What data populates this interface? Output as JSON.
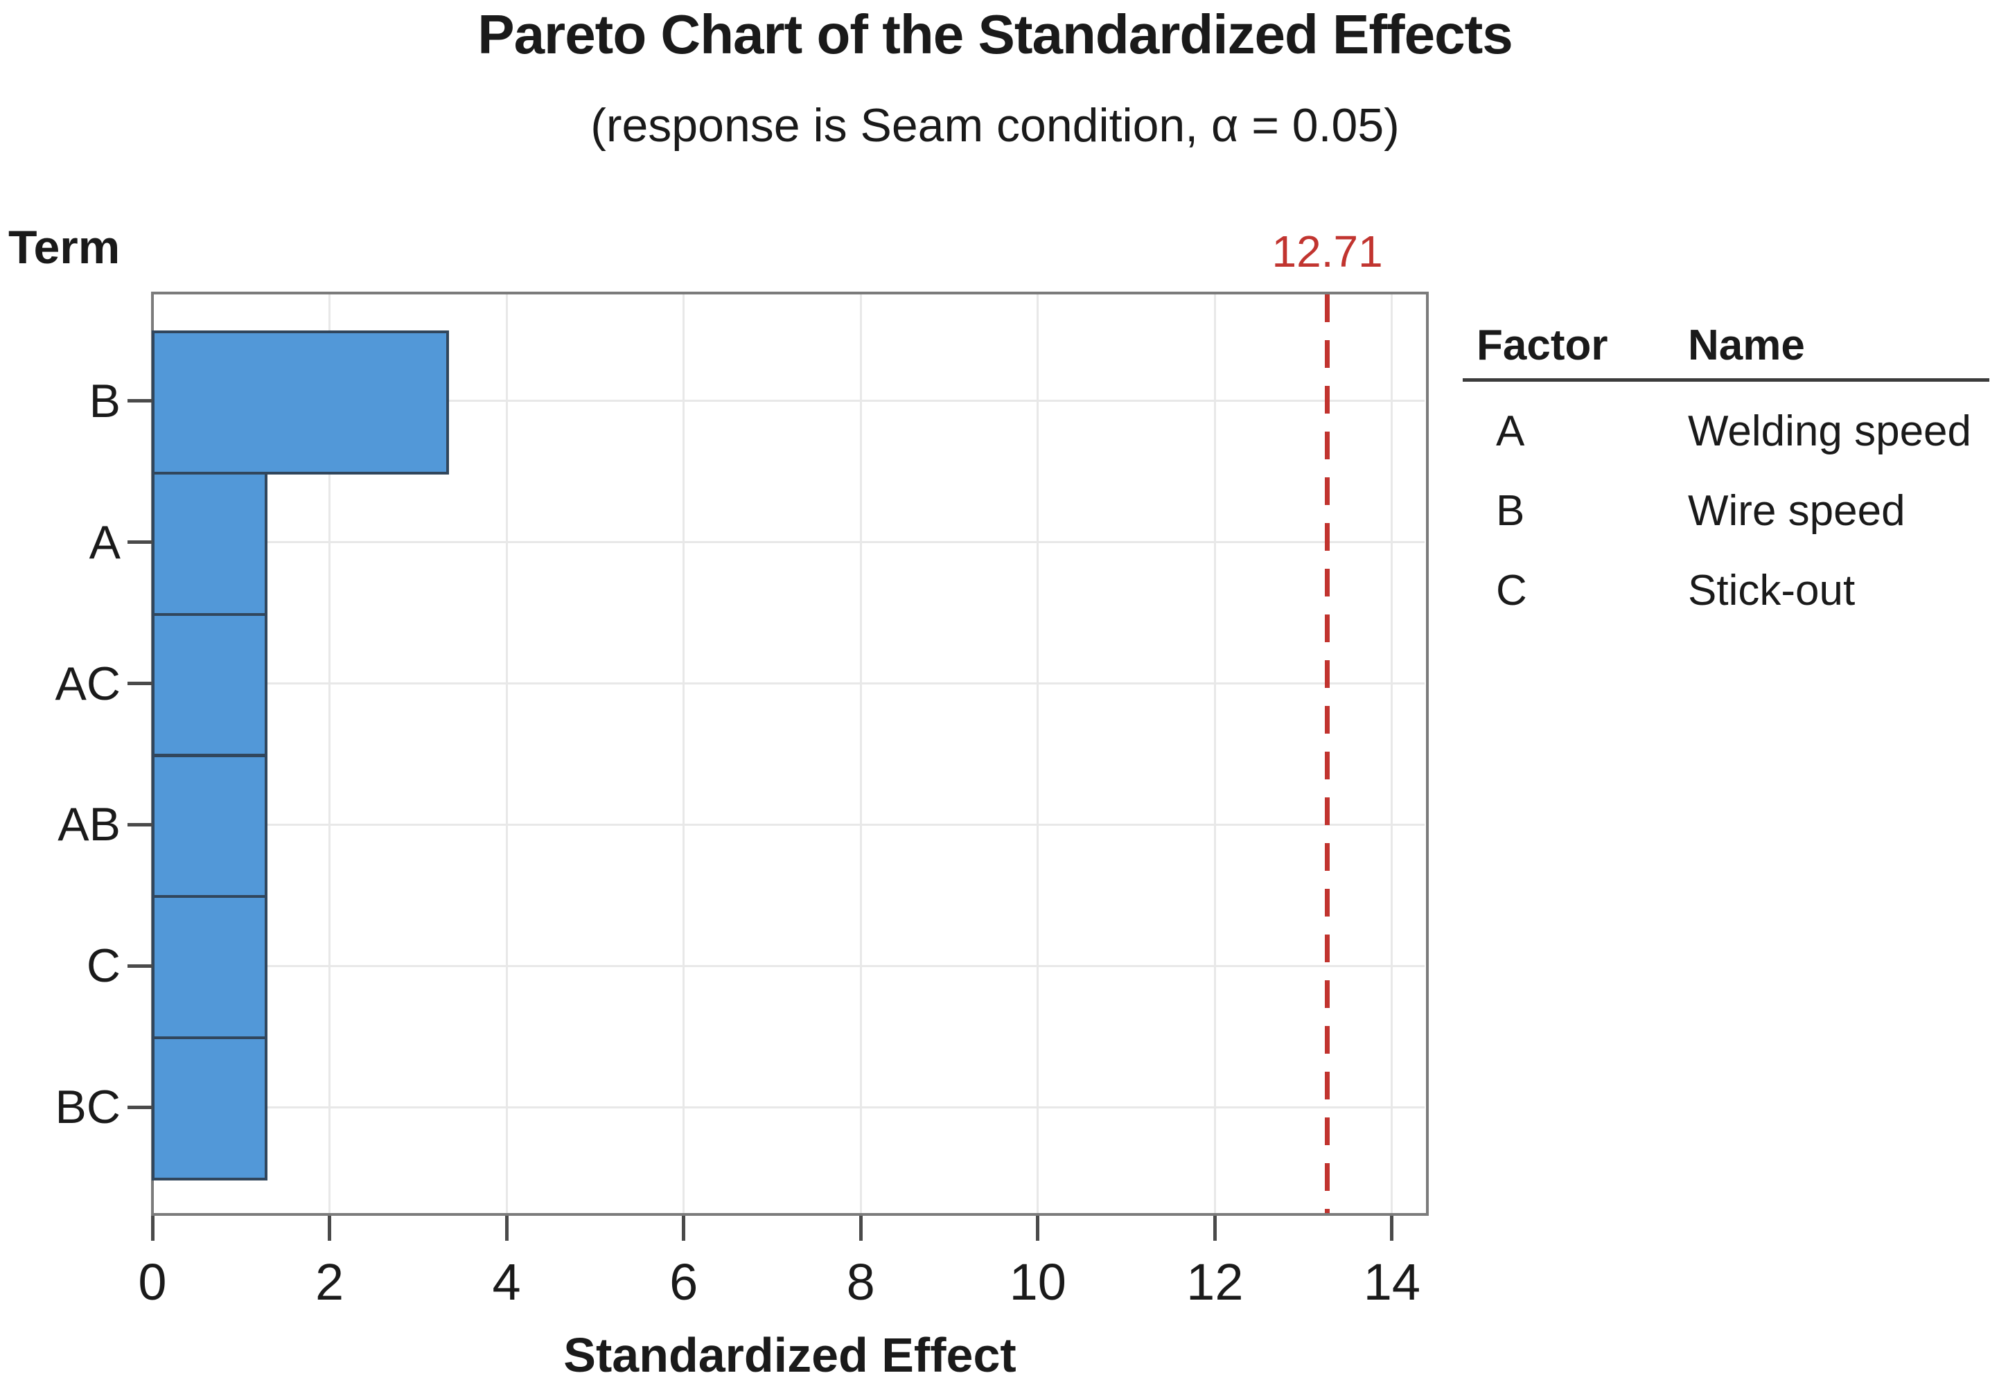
{
  "chart_data": {
    "type": "bar",
    "orientation": "horizontal",
    "title": "Pareto Chart of the Standardized Effects",
    "subtitle": "(response is Seam condition, α = 0.05)",
    "xlabel": "Standardized Effect",
    "ylabel": "Term",
    "categories": [
      "B",
      "A",
      "AC",
      "AB",
      "C",
      "BC"
    ],
    "values": [
      3.35,
      1.3,
      1.3,
      1.3,
      1.3,
      1.3
    ],
    "x_ticks": [
      0,
      2,
      4,
      6,
      8,
      10,
      12,
      14
    ],
    "xlim": [
      0,
      14.4
    ],
    "grid": "light gray gridlines at x ticks and bar centers",
    "legend_position": "right of plot",
    "reference_line": {
      "label": "12.71",
      "x_visual": 13.27,
      "style": "dashed",
      "color": "#c1342f"
    },
    "colors": {
      "bar_fill": "#5298d8",
      "bar_border": "#31465c",
      "plot_border": "#7b7b7b",
      "tick": "#4a4a4a",
      "gridline": "#e8e8e8",
      "text": "#1a1a1a",
      "reference": "#c1342f"
    },
    "legend": {
      "headers": [
        "Factor",
        "Name"
      ],
      "rows": [
        [
          "A",
          "Welding speed"
        ],
        [
          "B",
          "Wire speed"
        ],
        [
          "C",
          "Stick-out"
        ]
      ]
    }
  }
}
